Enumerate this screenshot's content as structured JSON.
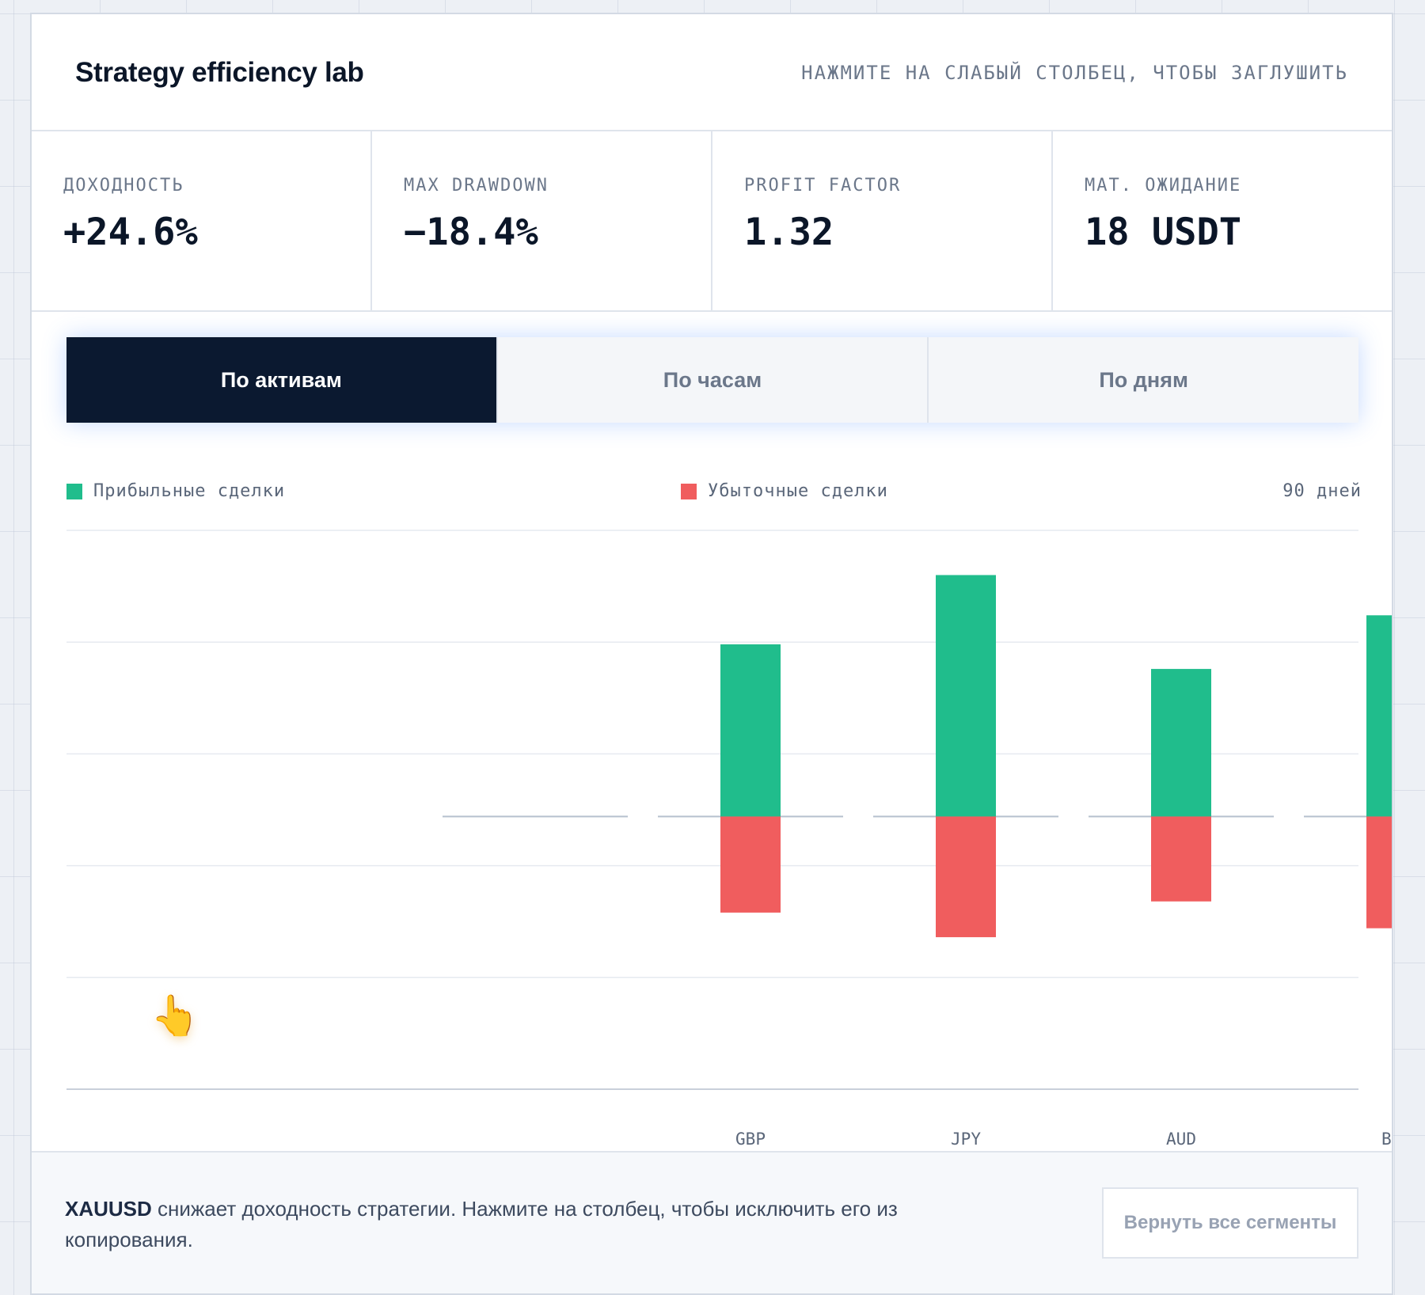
{
  "header": {
    "title": "Strategy efficiency lab",
    "hint": "НАЖМИТЕ НА СЛАБЫЙ СТОЛБЕЦ, ЧТОБЫ ЗАГЛУШИТЬ"
  },
  "metrics": [
    {
      "label": "ДОХОДНОСТЬ",
      "value": "+24.6%"
    },
    {
      "label": "MAX DRAWDOWN",
      "value": "−18.4%"
    },
    {
      "label": "PROFIT FACTOR",
      "value": "1.32"
    },
    {
      "label": "МАТ. ОЖИДАНИЕ",
      "value": "18 USDT"
    }
  ],
  "tabs": [
    {
      "label": "По активам",
      "active": true
    },
    {
      "label": "По часам",
      "active": false
    },
    {
      "label": "По дням",
      "active": false
    }
  ],
  "legend": {
    "profit": "Прибыльные сделки",
    "loss": "Убыточные сделки",
    "period": "90 дней"
  },
  "colors": {
    "profit": "#20bd8c",
    "loss": "#f05d5e",
    "accent": "#0b1930"
  },
  "chart_data": {
    "type": "bar",
    "categories": [
      "",
      "",
      "GBP",
      "JPY",
      "AUD",
      "BTC"
    ],
    "series": [
      {
        "name": "Прибыльные сделки",
        "values": [
          0,
          0,
          7.7,
          10.8,
          6.6,
          9.0
        ]
      },
      {
        "name": "Убыточные сделки",
        "values": [
          0,
          0,
          -4.3,
          -5.4,
          -3.8,
          -5.0
        ]
      }
    ],
    "ylim": [
      -12.2,
      12.8
    ],
    "grid": true
  },
  "footer": {
    "asset": "XAUUSD",
    "message": " снижает доходность стратегии. Нажмите на столбец, чтобы исключить его из копирования.",
    "reset_label": "Вернуть все сегменты"
  },
  "cursor_icon": "pointing-hand-icon"
}
